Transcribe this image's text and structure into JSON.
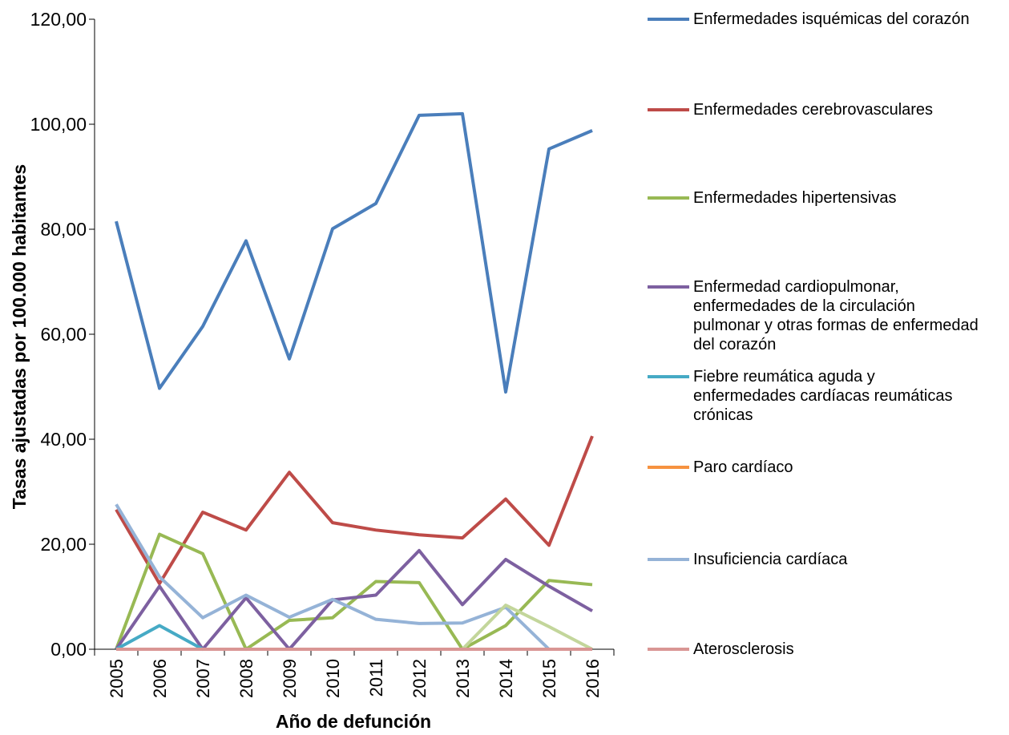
{
  "chart_data": {
    "type": "line",
    "y_label": "Tasas ajustadas por 100.000 habitantes",
    "x_label": "Año de defunción",
    "categories": [
      "2005",
      "2006",
      "2007",
      "2008",
      "2009",
      "2010",
      "2011",
      "2012",
      "2013",
      "2014",
      "2015",
      "2016"
    ],
    "ylim": [
      0,
      120
    ],
    "yticks": [
      {
        "value": 0,
        "label": "0,00"
      },
      {
        "value": 20,
        "label": "20,00"
      },
      {
        "value": 40,
        "label": "40,00"
      },
      {
        "value": 60,
        "label": "60,00"
      },
      {
        "value": 80,
        "label": "80,00"
      },
      {
        "value": 100,
        "label": "100,00"
      },
      {
        "value": 120,
        "label": "120,00"
      }
    ],
    "legend": "right",
    "series": [
      {
        "name": "Enfermedades isquémicas del corazón",
        "color": "#4a7ebb",
        "values": [
          81.5,
          49.7,
          61.5,
          77.8,
          55.3,
          80.1,
          84.9,
          101.7,
          102.0,
          49.0,
          95.3,
          98.8
        ]
      },
      {
        "name": "Enfermedades cerebrovasculares",
        "color": "#be4b48",
        "values": [
          26.6,
          12.5,
          26.1,
          22.7,
          33.7,
          24.1,
          22.7,
          21.8,
          21.2,
          28.6,
          19.8,
          40.6
        ]
      },
      {
        "name": "Enfermedades hipertensivas",
        "color": "#98b954",
        "values": [
          0,
          21.9,
          18.2,
          0,
          5.5,
          6.0,
          12.9,
          12.7,
          0,
          4.5,
          13.1,
          12.3
        ]
      },
      {
        "name": "Enfermedad cardiopulmonar, enfermedades de la circulación pulmonar y otras formas de enfermedad del corazón",
        "color": "#7d60a0",
        "values": [
          0,
          12.0,
          0,
          9.8,
          0,
          9.4,
          10.3,
          18.8,
          8.5,
          17.1,
          12.0,
          7.3
        ]
      },
      {
        "name": "Fiebre reumática aguda y enfermedades cardíacas reumáticas crónicas",
        "color": "#46aac5",
        "values": [
          0,
          4.5,
          0,
          0,
          0,
          0,
          0,
          0,
          0,
          0,
          0,
          0
        ]
      },
      {
        "name": "Paro cardíaco",
        "color": "#f69240",
        "values": [
          0,
          0,
          0,
          0,
          0,
          0,
          0,
          0,
          0,
          0,
          0,
          0
        ]
      },
      {
        "name": "Insuficiencia cardíaca",
        "color": "#95b3d7",
        "values": [
          27.6,
          13.8,
          6.0,
          10.3,
          6.1,
          9.5,
          5.7,
          4.9,
          5.0,
          8.0,
          0,
          0
        ]
      },
      {
        "color": "#c3d69b",
        "values": [
          0,
          0,
          0,
          0,
          0,
          0,
          0,
          0,
          0,
          8.4,
          4.3,
          0
        ]
      },
      {
        "name": "Aterosclerosis",
        "color": "#d99694",
        "values": [
          0,
          0,
          0,
          0,
          0,
          0,
          0,
          0,
          0,
          0,
          0,
          0
        ]
      }
    ]
  }
}
